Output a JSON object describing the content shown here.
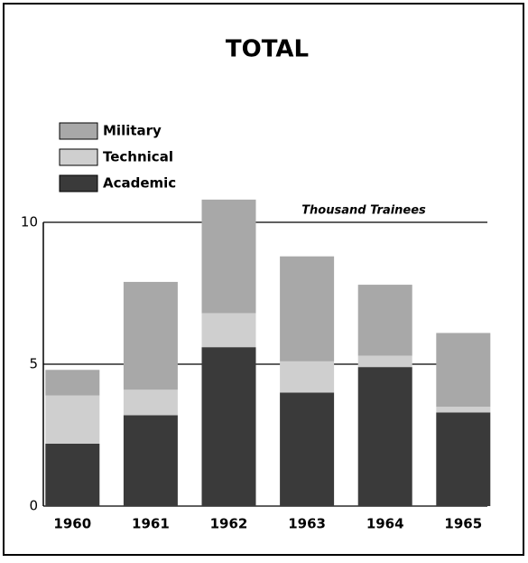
{
  "chart_data": {
    "type": "bar",
    "stacked": true,
    "title": "TOTAL",
    "y_axis_label": "Thousand Trainees",
    "categories": [
      "1960",
      "1961",
      "1962",
      "1963",
      "1964",
      "1965"
    ],
    "series": [
      {
        "name": "Academic",
        "color": "#3a3a3a",
        "values": [
          2.2,
          3.2,
          5.6,
          4.0,
          4.9,
          3.3
        ]
      },
      {
        "name": "Technical",
        "color": "#cfcfcf",
        "values": [
          1.7,
          0.9,
          1.2,
          1.1,
          0.4,
          0.2
        ]
      },
      {
        "name": "Military",
        "color": "#a8a8a8",
        "values": [
          0.9,
          3.8,
          4.0,
          3.7,
          2.5,
          2.6
        ]
      }
    ],
    "ylim": [
      0,
      10
    ],
    "yticks": [
      0,
      5,
      10
    ],
    "grid": true
  }
}
